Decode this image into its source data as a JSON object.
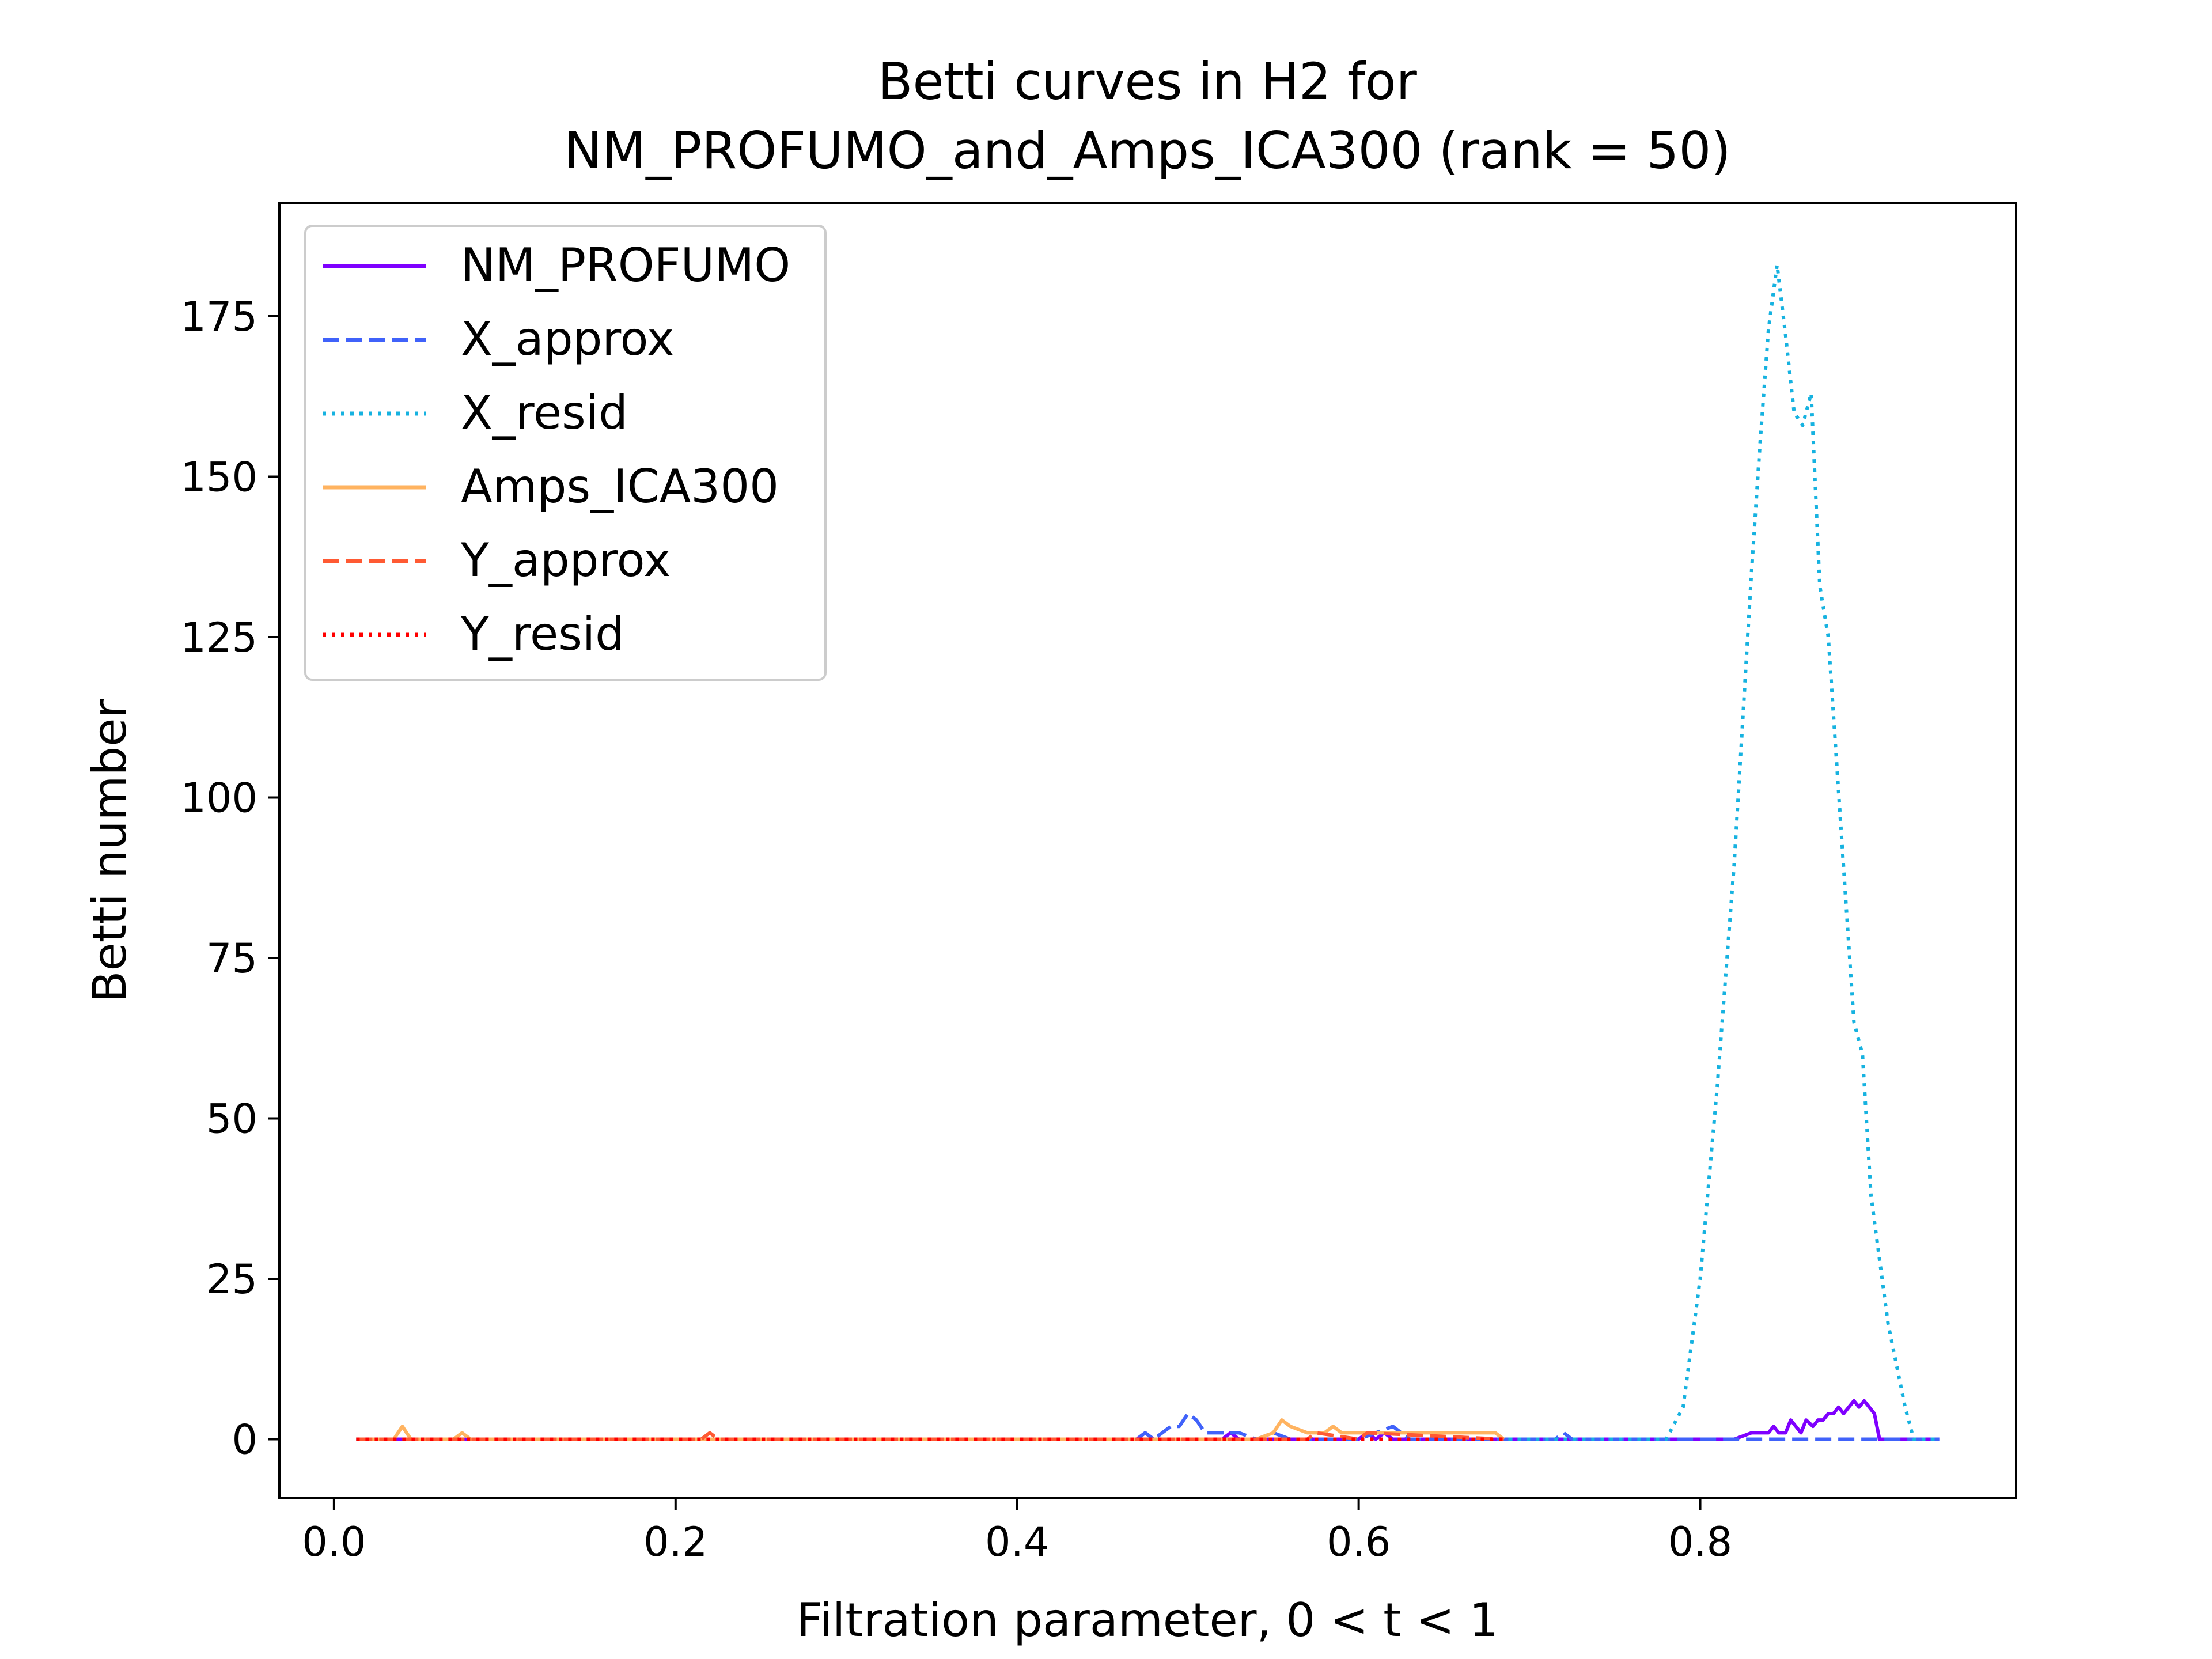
{
  "chart_data": {
    "type": "line",
    "title": [
      "Betti curves in H2 for",
      "NM_PROFUMO_and_Amps_ICA300 (rank = 50)"
    ],
    "xlabel": "Filtration parameter, 0 < t < 1",
    "ylabel": "Betti number",
    "xlim": [
      -0.032,
      0.985
    ],
    "ylim": [
      -9.2,
      192.6
    ],
    "xticks": [
      0.0,
      0.2,
      0.4,
      0.6,
      0.8
    ],
    "xtick_labels": [
      "0.0",
      "0.2",
      "0.4",
      "0.6",
      "0.8"
    ],
    "yticks": [
      0,
      25,
      50,
      75,
      100,
      125,
      150,
      175
    ],
    "ytick_labels": [
      "0",
      "25",
      "50",
      "75",
      "100",
      "125",
      "150",
      "175"
    ],
    "grid": false,
    "legend_position": "top-left",
    "series": [
      {
        "name": "NM_PROFUMO",
        "color": "#7f00ff",
        "style": "solid",
        "x": [
          0.013,
          0.46,
          0.47,
          0.475,
          0.48,
          0.5,
          0.52,
          0.525,
          0.53,
          0.6,
          0.605,
          0.61,
          0.615,
          0.62,
          0.7,
          0.82,
          0.83,
          0.835,
          0.84,
          0.843,
          0.846,
          0.85,
          0.853,
          0.856,
          0.859,
          0.862,
          0.866,
          0.869,
          0.872,
          0.875,
          0.878,
          0.881,
          0.884,
          0.887,
          0.89,
          0.893,
          0.896,
          0.899,
          0.902,
          0.905,
          0.94
        ],
        "y": [
          0,
          0,
          0,
          1,
          0,
          0,
          0,
          1,
          0,
          0,
          1,
          0,
          1,
          0,
          0,
          0,
          1,
          1,
          1,
          2,
          1,
          1,
          3,
          2,
          1,
          3,
          2,
          3,
          3,
          4,
          4,
          5,
          4,
          5,
          6,
          5,
          6,
          5,
          4,
          0,
          0
        ]
      },
      {
        "name": "X_approx",
        "color": "#4062fa",
        "style": "dashed",
        "x": [
          0.013,
          0.46,
          0.47,
          0.475,
          0.48,
          0.485,
          0.49,
          0.495,
          0.5,
          0.505,
          0.51,
          0.515,
          0.52,
          0.53,
          0.54,
          0.55,
          0.56,
          0.6,
          0.61,
          0.62,
          0.63,
          0.7,
          0.715,
          0.72,
          0.725,
          0.78,
          0.94
        ],
        "y": [
          0,
          0,
          0,
          1,
          0,
          1,
          2,
          2,
          4,
          3,
          1,
          1,
          1,
          1,
          0,
          1,
          0,
          0,
          1,
          2,
          0,
          0,
          0,
          1,
          0,
          0,
          0
        ]
      },
      {
        "name": "X_resid",
        "color": "#16b2e0",
        "style": "dotted",
        "x": [
          0.013,
          0.78,
          0.79,
          0.8,
          0.81,
          0.82,
          0.83,
          0.835,
          0.84,
          0.845,
          0.85,
          0.855,
          0.86,
          0.865,
          0.868,
          0.87,
          0.875,
          0.88,
          0.885,
          0.89,
          0.895,
          0.9,
          0.91,
          0.92,
          0.925,
          0.94
        ],
        "y": [
          0,
          0,
          5,
          25,
          55,
          90,
          135,
          155,
          173,
          183,
          172,
          160,
          158,
          163,
          145,
          133,
          125,
          105,
          85,
          65,
          60,
          38,
          18,
          5,
          0,
          0
        ]
      },
      {
        "name": "Amps_ICA300",
        "color": "#ffb360",
        "style": "solid",
        "x": [
          0.013,
          0.035,
          0.04,
          0.045,
          0.07,
          0.075,
          0.08,
          0.54,
          0.55,
          0.555,
          0.56,
          0.57,
          0.58,
          0.585,
          0.59,
          0.6,
          0.61,
          0.62,
          0.63,
          0.65,
          0.68,
          0.685
        ],
        "y": [
          0,
          0,
          2,
          0,
          0,
          1,
          0,
          0,
          1,
          3,
          2,
          1,
          1,
          2,
          1,
          1,
          1,
          1,
          1,
          1,
          1,
          0
        ]
      },
      {
        "name": "Y_approx",
        "color": "#ff5a33",
        "style": "dashed",
        "x": [
          0.013,
          0.215,
          0.22,
          0.225,
          0.56,
          0.57,
          0.575,
          0.6,
          0.605,
          0.685
        ],
        "y": [
          0,
          0,
          1,
          0,
          0,
          0,
          1,
          0,
          1,
          0
        ]
      },
      {
        "name": "Y_resid",
        "color": "#ff0000",
        "style": "dotted",
        "x": [
          0.013,
          0.685
        ],
        "y": [
          0,
          0
        ]
      }
    ]
  }
}
